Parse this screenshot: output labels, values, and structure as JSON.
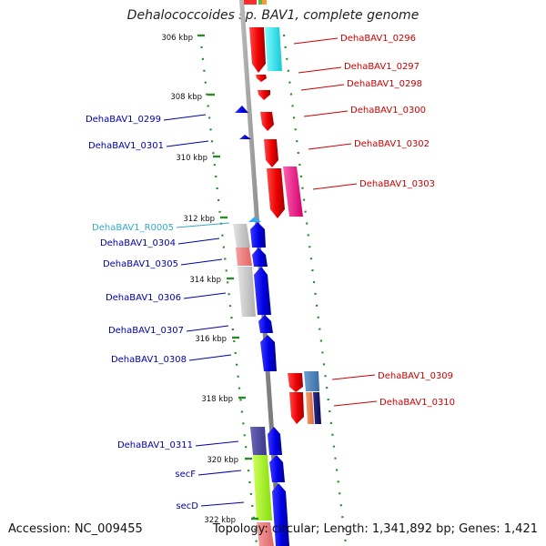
{
  "title": "Dehalococcoides sp. BAV1, complete genome",
  "footer": {
    "accession": "Accession: NC_009455",
    "topology": "Topology: circular; Length: 1,341,892 bp; Genes: 1,421"
  },
  "scale_ticks": [
    "306 kbp",
    "308 kbp",
    "310 kbp",
    "312 kbp",
    "314 kbp",
    "316 kbp",
    "318 kbp",
    "320 kbp",
    "322 kbp"
  ],
  "genes_right": [
    "DehaBAV1_0296",
    "DehaBAV1_0297",
    "DehaBAV1_0298",
    "DehaBAV1_0300",
    "DehaBAV1_0302",
    "DehaBAV1_0303",
    "DehaBAV1_0309",
    "DehaBAV1_0310"
  ],
  "genes_left": [
    "DehaBAV1_0299",
    "DehaBAV1_0301",
    "DehaBAV1_R0005",
    "DehaBAV1_0304",
    "DehaBAV1_0305",
    "DehaBAV1_0306",
    "DehaBAV1_0307",
    "DehaBAV1_0308",
    "DehaBAV1_0311",
    "secF",
    "secD"
  ],
  "colors": {
    "forward_label": "#cc0000",
    "reverse_label": "#0000aa",
    "rna_label": "#33aacc",
    "forward_gene": "#ff0000",
    "reverse_gene": "#0000ee",
    "backbone": "#8c8c8c",
    "tick_mark": "#2a8a2a"
  }
}
